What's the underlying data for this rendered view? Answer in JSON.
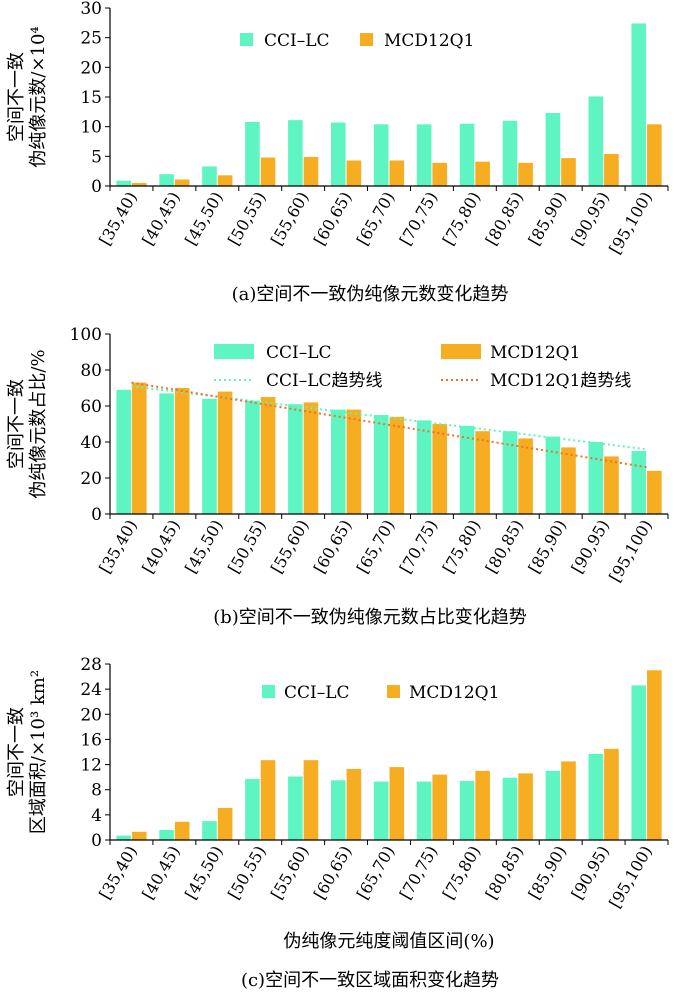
{
  "colors": {
    "cci": "#5ff5c3",
    "mcd": "#f6ad21",
    "cci_trend": "#5ff5c3",
    "mcd_trend": "#f26f2b"
  },
  "chart_data": [
    {
      "id": "a",
      "type": "bar",
      "caption": "(a)空间不一致伪纯像元数变化趋势",
      "ylabel": [
        "空间不一致",
        "伪纯像元数/×10⁴"
      ],
      "xlabel": "",
      "ylim": [
        0,
        30
      ],
      "yticks": [
        0,
        5,
        10,
        15,
        20,
        25,
        30
      ],
      "grid": false,
      "legend_position": "top",
      "categories": [
        "[35,40)",
        "[40,45)",
        "[45,50)",
        "[50,55)",
        "[55,60)",
        "[60,65)",
        "[65,70)",
        "[70,75)",
        "[75,80)",
        "[80,85)",
        "[85,90)",
        "[90,95)",
        "[95,100)"
      ],
      "series": [
        {
          "name": "CCI–LC",
          "values": [
            0.9,
            2.0,
            3.3,
            10.8,
            11.1,
            10.7,
            10.4,
            10.4,
            10.5,
            11.0,
            12.3,
            15.1,
            27.4
          ]
        },
        {
          "name": "MCD12Q1",
          "values": [
            0.5,
            1.1,
            1.8,
            4.8,
            4.9,
            4.3,
            4.3,
            3.9,
            4.1,
            3.9,
            4.7,
            5.4,
            10.4
          ]
        }
      ]
    },
    {
      "id": "b",
      "type": "bar",
      "caption": "(b)空间不一致伪纯像元数占比变化趋势",
      "ylabel": [
        "空间不一致",
        "伪纯像元数占比/%"
      ],
      "xlabel": "",
      "ylim": [
        0,
        100
      ],
      "yticks": [
        0,
        20,
        40,
        60,
        80,
        100
      ],
      "grid": false,
      "legend_position": "top",
      "categories": [
        "[35,40)",
        "[40,45)",
        "[45,50)",
        "[50,55)",
        "[55,60)",
        "[60,65)",
        "[65,70)",
        "[70,75)",
        "[75,80)",
        "[80,85)",
        "[85,90)",
        "[90,95)",
        "[95,100)"
      ],
      "series": [
        {
          "name": "CCI–LC",
          "values": [
            69,
            67,
            64,
            63,
            61,
            58,
            55,
            52,
            49,
            46,
            43,
            40,
            35
          ]
        },
        {
          "name": "MCD12Q1",
          "values": [
            73,
            70,
            68,
            65,
            62,
            58,
            54,
            50,
            46,
            42,
            37,
            32,
            24
          ]
        }
      ],
      "trendlines": [
        {
          "name": "CCI–LC趋势线",
          "from": 71,
          "to": 36
        },
        {
          "name": "MCD12Q1趋势线",
          "from": 73,
          "to": 26
        }
      ]
    },
    {
      "id": "c",
      "type": "bar",
      "caption": "(c)空间不一致区域面积变化趋势",
      "ylabel": [
        "空间不一致",
        "区域面积/×10³ km²"
      ],
      "xlabel": "伪纯像元纯度阈值区间(%)",
      "ylim": [
        0,
        28
      ],
      "yticks": [
        0,
        4,
        8,
        12,
        16,
        20,
        24,
        28
      ],
      "grid": false,
      "legend_position": "top",
      "categories": [
        "[35,40)",
        "[40,45)",
        "[45,50)",
        "[50,55)",
        "[55,60)",
        "[60,65)",
        "[65,70)",
        "[70,75)",
        "[75,80)",
        "[80,85)",
        "[85,90)",
        "[90,95)",
        "[95,100)"
      ],
      "series": [
        {
          "name": "CCI–LC",
          "values": [
            0.7,
            1.6,
            3.0,
            9.7,
            10.1,
            9.5,
            9.3,
            9.3,
            9.4,
            9.9,
            11.0,
            13.7,
            24.6
          ]
        },
        {
          "name": "MCD12Q1",
          "values": [
            1.3,
            2.9,
            5.1,
            12.7,
            12.7,
            11.3,
            11.6,
            10.4,
            11.0,
            10.6,
            12.5,
            14.5,
            27.0
          ]
        }
      ]
    }
  ]
}
